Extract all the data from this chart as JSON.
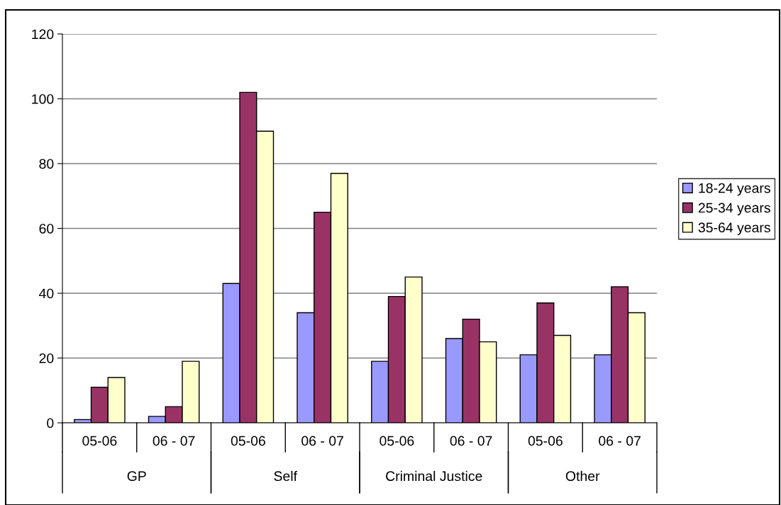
{
  "chart_data": {
    "type": "bar",
    "categories": [
      "05-06",
      "06 - 07",
      "05-06",
      "06 - 07",
      "05-06",
      "06 - 07",
      "05-06",
      "06 - 07"
    ],
    "series": [
      {
        "name": "18-24 years",
        "color": "#9999ff",
        "values": [
          1,
          2,
          43,
          34,
          19,
          26,
          21,
          21
        ]
      },
      {
        "name": "25-34 years",
        "color": "#993366",
        "values": [
          11,
          5,
          102,
          65,
          39,
          32,
          37,
          42
        ]
      },
      {
        "name": "35-64 years",
        "color": "#ffffcc",
        "values": [
          14,
          19,
          90,
          77,
          45,
          25,
          27,
          34
        ]
      }
    ],
    "annotations": [
      "GP",
      "Self",
      "Criminal Justice",
      "Other"
    ],
    "ylim": [
      0,
      120
    ],
    "yticks": [
      0,
      20,
      40,
      60,
      80,
      100,
      120
    ],
    "grid": "y",
    "legend": "right"
  }
}
